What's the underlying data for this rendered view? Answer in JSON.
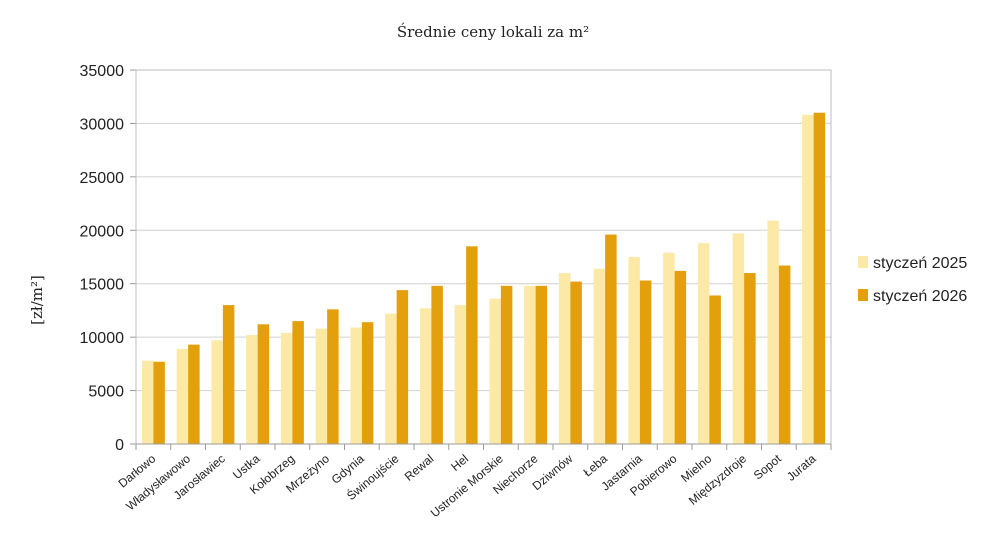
{
  "chart_data": {
    "type": "bar",
    "title": "Średnie ceny lokali za m²",
    "xlabel": "",
    "ylabel": "[zł/m²]",
    "ylim": [
      0,
      35000
    ],
    "yticks": [
      0,
      5000,
      10000,
      15000,
      20000,
      25000,
      30000,
      35000
    ],
    "grid": true,
    "legend_position": "right",
    "categories": [
      "Darłowo",
      "Władysławowo",
      "Jarosławiec",
      "Ustka",
      "Kołobrzeg",
      "Mrzeżyno",
      "Gdynia",
      "Świnoujście",
      "Rewal",
      "Hel",
      "Ustronie Morskie",
      "Niechorze",
      "Dziwnów",
      "Łeba",
      "Jastarnia",
      "Pobierowo",
      "Mielno",
      "Międzyzdroje",
      "Sopot",
      "Jurata"
    ],
    "series": [
      {
        "name": "styczeń 2025",
        "color": "#fde9a6",
        "values": [
          7800,
          8900,
          9700,
          10200,
          10400,
          10800,
          10900,
          12200,
          12700,
          13000,
          13600,
          14800,
          16000,
          16400,
          17500,
          17900,
          18800,
          19700,
          20900,
          30800
        ]
      },
      {
        "name": "styczeń 2026",
        "color": "#e4a00c",
        "values": [
          7700,
          9300,
          13000,
          11200,
          11500,
          12600,
          11400,
          14400,
          14800,
          18500,
          14800,
          14800,
          15200,
          19600,
          15300,
          16200,
          13900,
          16000,
          16700,
          31000
        ]
      }
    ]
  }
}
